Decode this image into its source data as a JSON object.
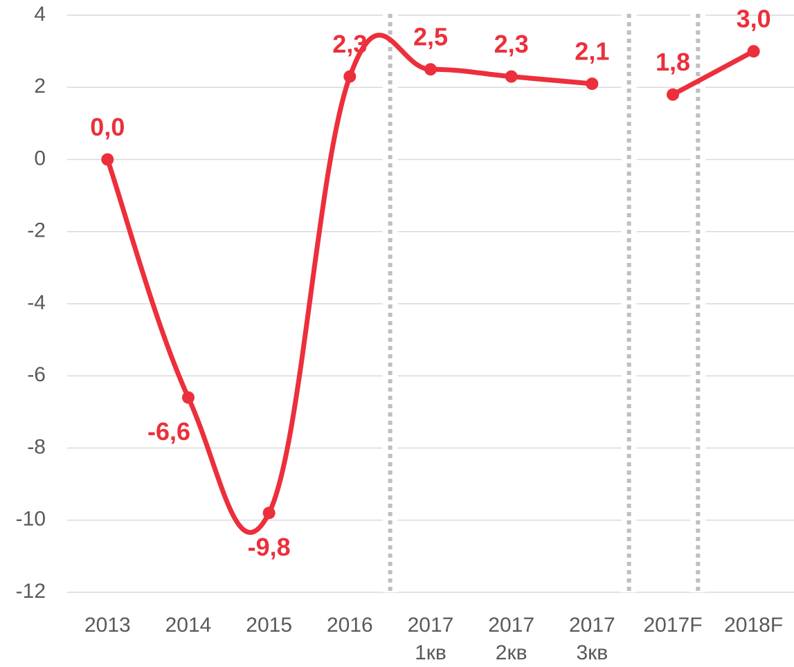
{
  "chart_data": {
    "type": "line",
    "categories": [
      [
        "2013"
      ],
      [
        "2014"
      ],
      [
        "2015"
      ],
      [
        "2016"
      ],
      [
        "2017",
        "1кв"
      ],
      [
        "2017",
        "2кв"
      ],
      [
        "2017",
        "3кв"
      ],
      [
        "2017F"
      ],
      [
        "2018F"
      ]
    ],
    "series": [
      {
        "color": "#ec2f3b",
        "values": [
          0.0,
          -6.6,
          -9.8,
          2.3,
          2.5,
          2.3,
          2.1,
          null,
          null
        ],
        "value_labels": [
          "0,0",
          "-6,6",
          "-9,8",
          "2,3",
          "2,5",
          "2,3",
          "2,1",
          null,
          null
        ]
      },
      {
        "color": "#ec2f3b",
        "values": [
          null,
          null,
          null,
          null,
          null,
          null,
          null,
          1.8,
          3.0
        ],
        "value_labels": [
          null,
          null,
          null,
          null,
          null,
          null,
          null,
          "1,8",
          "3,0"
        ]
      }
    ],
    "ylim": [
      -12,
      4
    ],
    "yticks": [
      -12,
      -10,
      -8,
      -6,
      -4,
      -2,
      0,
      2,
      4
    ],
    "grid": true
  }
}
